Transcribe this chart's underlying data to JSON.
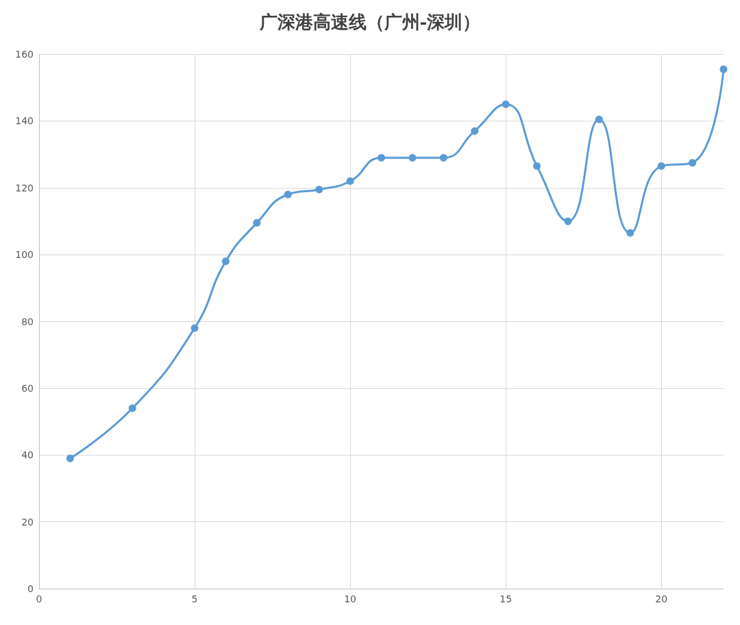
{
  "chart_data": {
    "type": "line",
    "title": "广深港高速线（广州-深圳）",
    "series": [
      {
        "color": "#5b9bd5",
        "x": [
          1,
          3,
          5,
          6,
          7,
          8,
          9,
          10,
          11,
          12,
          13,
          14,
          15,
          16,
          17,
          18,
          19,
          20,
          21,
          22
        ],
        "values": [
          39,
          54,
          78,
          98,
          109.5,
          118,
          119.5,
          122,
          129,
          129,
          129,
          137,
          145,
          126.5,
          110,
          140.5,
          106.5,
          126.5,
          127.5,
          155.5
        ]
      }
    ],
    "xlim": [
      0,
      22
    ],
    "xticks": [
      0,
      5,
      10,
      15,
      20
    ],
    "ylim": [
      0,
      160
    ],
    "yticks": [
      0,
      20,
      40,
      60,
      80,
      100,
      120,
      140,
      160
    ],
    "grid": true,
    "marker": "circle",
    "line_style": "solid"
  }
}
